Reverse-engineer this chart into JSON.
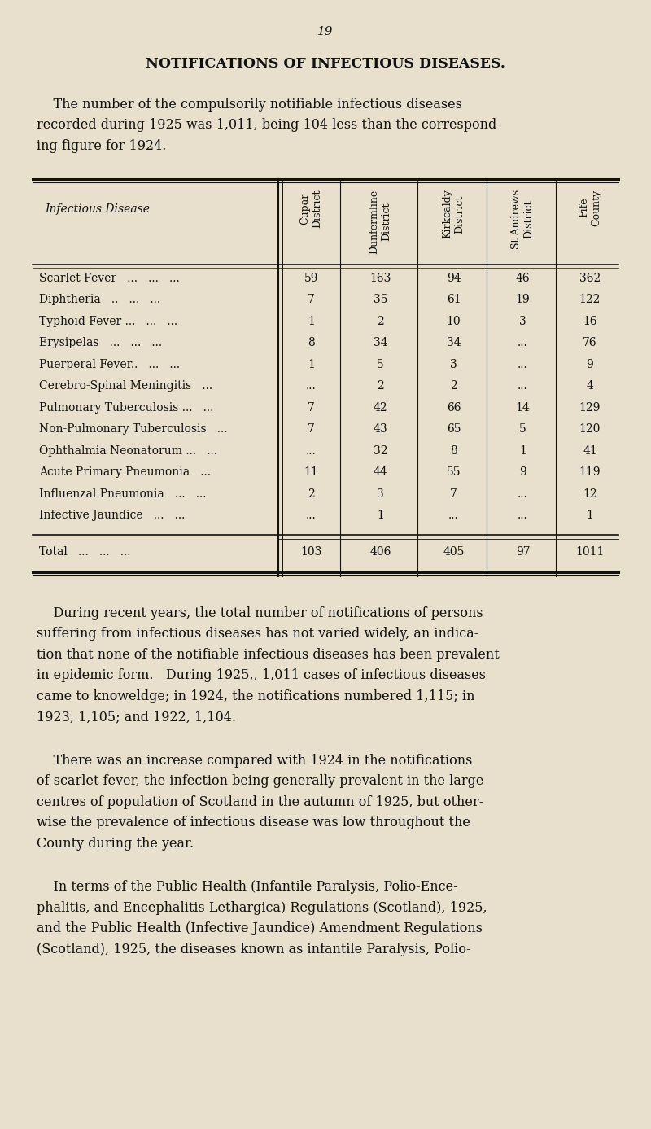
{
  "page_number": "19",
  "section_title": "NOTIFICATIONS OF INFECTIOUS DISEASES.",
  "intro_text": "The number of the compulsorily notifiable infectious diseases recorded during 1925 was 1,011, being 104 less than the correspond-\ning figure for 1924.",
  "table_col_headers": [
    "Infectious Disease",
    "Cupar\nDistrict",
    "Dunfermline\nDistrict",
    "Kirkcaldy\nDistrict",
    "St Andrews\nDistrict",
    "Fife\nCounty"
  ],
  "table_rows": [
    [
      "Scarlet Fever   ...   ...   ...",
      "59",
      "163",
      "94",
      "46",
      "362"
    ],
    [
      "Diphtheria   ..   ...   ...",
      "7",
      "35",
      "61",
      "19",
      "122"
    ],
    [
      "Typhoid Fever ...   ...   ...",
      "1",
      "2",
      "10",
      "3",
      "16"
    ],
    [
      "Erysipelas   ...   ...   ...",
      "8",
      "34",
      "34",
      "...",
      "76"
    ],
    [
      "Puerperal Fever..   ...   ...",
      "1",
      "5",
      "3",
      "...",
      "9"
    ],
    [
      "Cerebro-Spinal Meningitis   ...",
      "...",
      "2",
      "2",
      "...",
      "4"
    ],
    [
      "Pulmonary Tuberculosis ...   ...",
      "7",
      "42",
      "66",
      "14",
      "129"
    ],
    [
      "Non-Pulmonary Tuberculosis   ...",
      "7",
      "43",
      "65",
      "5",
      "120"
    ],
    [
      "Ophthalmia Neonatorum ...   ...",
      "...",
      "32",
      "8",
      "1",
      "41"
    ],
    [
      "Acute Primary Pneumonia   ...",
      "11",
      "44",
      "55",
      "9",
      "119"
    ],
    [
      "Influenzal Pneumonia   ...   ...",
      "2",
      "3",
      "7",
      "...",
      "12"
    ],
    [
      "Infective Jaundice   ...   ...",
      "...",
      "1",
      "...",
      "...",
      "1"
    ]
  ],
  "table_total_row": [
    "Total   ...   ...   ...",
    "103",
    "406",
    "405",
    "97",
    "1011"
  ],
  "body_paragraphs": [
    "During recent years, the total number of notifications of persons suffering from infectious diseases has not varied widely, an indica-\ntion that none of the notifiable infectious diseases has been prevalent\nin epidemic form.   During 1925,, 1,011 cases of infectious diseases\ncame to knoweldge; in 1924, the notifications numbered 1,115; in\n1923, 1,105; and 1922, 1,104.",
    "There was an increase compared with 1924 in the notifications\nof scarlet fever, the infection being generally prevalent in the large\ncentres of population of Scotland in the autumn of 1925, but other-\nwise the prevalence of infectious disease was low throughout the\nCounty during the year.",
    "In terms of the Public Health (Infantile Paralysis, Polio-Ence-\nphalitis, and Encephalitis Lethargica) Regulations (Scotland), 1925,\nand the Public Health (Infective Jaundice) Amendment Regulations\n(Scotland), 1925, the diseases known as infantile Paralysis, Polio-"
  ],
  "bg_color": "#e8e0cc",
  "text_color": "#111111",
  "table_line_color": "#111111",
  "font_family": "DejaVu Serif"
}
